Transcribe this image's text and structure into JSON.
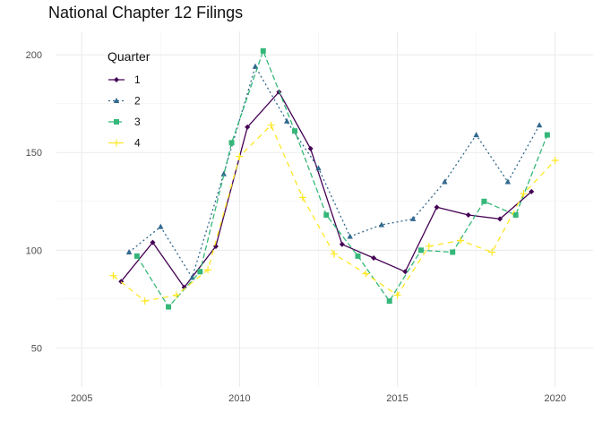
{
  "chart_data": {
    "type": "line",
    "title": "National Chapter 12 Filings",
    "xlabel": "",
    "ylabel": "",
    "xlim": [
      2004.2,
      2021.2
    ],
    "ylim": [
      30,
      212
    ],
    "x_ticks": [
      2005,
      2010,
      2015,
      2020
    ],
    "y_ticks": [
      50,
      100,
      150,
      200
    ],
    "grid": true,
    "legend": {
      "title": "Quarter",
      "position": "top-left (inside)"
    },
    "series": [
      {
        "name": "1",
        "color": "#440154",
        "dash": "",
        "marker": "diamond",
        "x": [
          2006.25,
          2007.25,
          2008.25,
          2009.25,
          2010.25,
          2011.25,
          2012.25,
          2013.25,
          2014.25,
          2015.25,
          2016.25,
          2017.25,
          2018.25,
          2019.25
        ],
        "y": [
          84,
          104,
          81,
          102,
          163,
          181,
          152,
          103,
          96,
          89,
          122,
          118,
          116,
          130
        ]
      },
      {
        "name": "2",
        "color": "#31688E",
        "dash": "2,3",
        "marker": "triangle",
        "x": [
          2006.5,
          2007.5,
          2008.5,
          2009.5,
          2010.5,
          2011.5,
          2012.5,
          2013.5,
          2014.5,
          2015.5,
          2016.5,
          2017.5,
          2018.5,
          2019.5
        ],
        "y": [
          99,
          112,
          86,
          139,
          194,
          166,
          142,
          107,
          113,
          116,
          135,
          159,
          135,
          164
        ]
      },
      {
        "name": "3",
        "color": "#35B779",
        "dash": "6,3",
        "marker": "square",
        "x": [
          2006.75,
          2007.75,
          2008.75,
          2009.75,
          2010.75,
          2011.75,
          2012.75,
          2013.75,
          2014.75,
          2015.75,
          2016.75,
          2017.75,
          2018.75,
          2019.75
        ],
        "y": [
          97,
          71,
          89,
          155,
          202,
          161,
          118,
          97,
          74,
          100,
          99,
          125,
          118,
          159
        ]
      },
      {
        "name": "4",
        "color": "#FDE725",
        "dash": "6,5",
        "marker": "plus",
        "x": [
          2006.0,
          2007.0,
          2008.0,
          2009.0,
          2010.0,
          2011.0,
          2012.0,
          2013.0,
          2014.0,
          2015.0,
          2016.0,
          2017.0,
          2018.0,
          2019.0,
          2020.0
        ],
        "y": [
          87,
          74,
          77,
          90,
          148,
          164,
          127,
          98,
          88,
          77,
          102,
          105,
          99,
          129,
          146
        ]
      }
    ]
  }
}
